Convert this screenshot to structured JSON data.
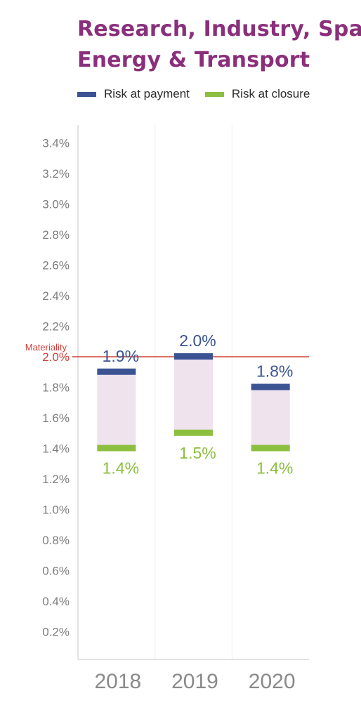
{
  "chart_data": {
    "type": "bar",
    "title_lines": [
      "Research, Industry, Spac",
      "Energy & Transport"
    ],
    "categories": [
      "2018",
      "2019",
      "2020"
    ],
    "series": [
      {
        "name": "Risk at payment",
        "values": [
          1.9,
          2.0,
          1.8
        ],
        "labels": [
          "1.9%",
          "2.0%",
          "1.8%"
        ],
        "color": "#3b5393"
      },
      {
        "name": "Risk at closure",
        "values": [
          1.4,
          1.5,
          1.4
        ],
        "labels": [
          "1.4%",
          "1.5%",
          "1.4%"
        ],
        "color": "#8cbf3f"
      }
    ],
    "range_fill_color": "#efe3ee",
    "ylim": [
      0,
      3.4
    ],
    "yticks": [
      3.4,
      3.2,
      3.0,
      2.8,
      2.6,
      2.4,
      2.2,
      2.0,
      1.8,
      1.6,
      1.4,
      1.2,
      1.0,
      0.8,
      0.6,
      0.4,
      0.2
    ],
    "ytick_labels": [
      "3.4%",
      "3.2%",
      "3.0%",
      "2.8%",
      "2.6%",
      "2.4%",
      "2.2%",
      "2.0%",
      "1.8%",
      "1.6%",
      "1.4%",
      "1.2%",
      "1.0%",
      "0.8%",
      "0.6%",
      "0.4%",
      "0.2%"
    ],
    "threshold": {
      "label": "Materiality",
      "value": 2.0,
      "color": "#d0403a"
    },
    "legend_position": "top-left",
    "grid": "vertical"
  }
}
